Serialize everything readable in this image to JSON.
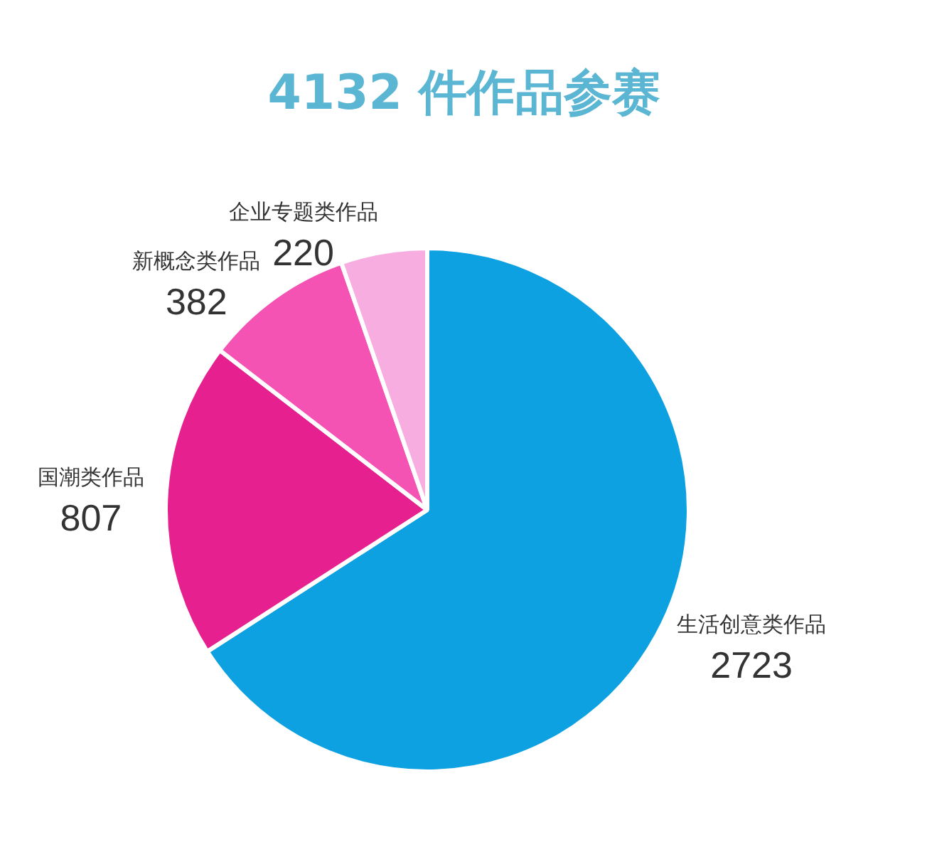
{
  "chart_data": {
    "type": "pie",
    "title": "4132 件作品参赛",
    "categories": [
      "生活创意类作品",
      "国潮类作品",
      "新概念类作品",
      "企业专题类作品"
    ],
    "values": [
      2723,
      807,
      382,
      220
    ],
    "colors": [
      "#0ea1e2",
      "#e6218f",
      "#f453b4",
      "#f8ade1"
    ],
    "data_labels": true
  }
}
